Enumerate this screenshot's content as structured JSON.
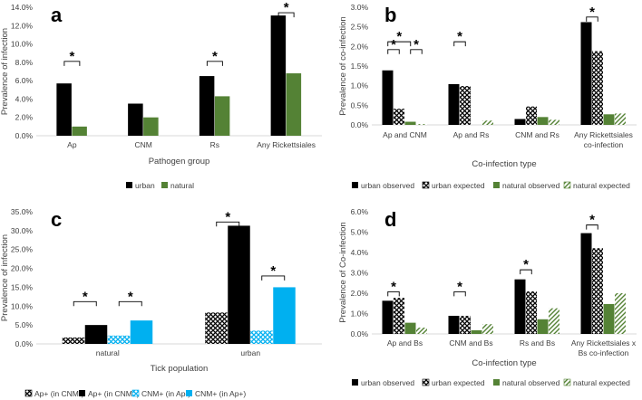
{
  "colors": {
    "urban": "#000000",
    "natural": "#548235",
    "cyan": "#00b0f0",
    "axis": "#d9d9d9",
    "text": "#404040"
  },
  "chart_data": [
    {
      "panel": "a",
      "type": "bar",
      "xlabel": "Pathogen group",
      "ylabel": "Prevalence of infection",
      "ylim": [
        0,
        0.14
      ],
      "ytick_step": 0.02,
      "ytick_decimals": 1,
      "categories": [
        "Ap",
        "CNM",
        "Rs",
        "Any Rickettsiales"
      ],
      "series": [
        {
          "name": "urban",
          "style": "solid-black",
          "values": [
            0.057,
            0.035,
            0.065,
            0.131
          ]
        },
        {
          "name": "natural",
          "style": "solid-green",
          "values": [
            0.01,
            0.02,
            0.043,
            0.068
          ]
        }
      ],
      "significance": [
        {
          "category": 0,
          "from": 0,
          "to": 1,
          "bracket": 0.081
        },
        {
          "category": 2,
          "from": 0,
          "to": 1,
          "bracket": 0.081
        },
        {
          "category": 3,
          "from": 0,
          "to": 1,
          "bracket": 0.134
        }
      ],
      "legend": [
        "urban",
        "natural"
      ]
    },
    {
      "panel": "b",
      "type": "bar",
      "xlabel": "Co-infection type",
      "ylabel": "Prevalence of co-infection",
      "ylim": [
        0,
        0.03
      ],
      "ytick_step": 0.005,
      "ytick_decimals": 1,
      "categories": [
        "Ap and CNM",
        "Ap and Rs",
        "CNM and Rs",
        "Any Rickettsiales|co-infection"
      ],
      "series": [
        {
          "name": "urban observed",
          "style": "solid-black",
          "values": [
            0.0139,
            0.0104,
            0.0015,
            0.0262
          ]
        },
        {
          "name": "urban expected",
          "style": "hatch-black",
          "values": [
            0.0041,
            0.0099,
            0.0047,
            0.0188
          ]
        },
        {
          "name": "natural observed",
          "style": "solid-green",
          "values": [
            0.0008,
            0.0,
            0.002,
            0.0027
          ]
        },
        {
          "name": "natural expected",
          "style": "hatch-green",
          "values": [
            0.0002,
            0.0011,
            0.0013,
            0.0029
          ]
        }
      ],
      "significance": [
        {
          "category": 0,
          "from": 0,
          "to": 1,
          "bracket": 0.0192
        },
        {
          "category": 0,
          "from": 0,
          "to": 2,
          "bracket": 0.0212
        },
        {
          "category": 0,
          "from": 2,
          "to": 3,
          "bracket": 0.0192
        },
        {
          "category": 1,
          "from": 0,
          "to": 1,
          "bracket": 0.0212
        },
        {
          "category": 3,
          "from": 0,
          "to": 1,
          "bracket": 0.0275
        }
      ],
      "legend": [
        "urban observed",
        "urban expected",
        "natural observed",
        "natural expected"
      ]
    },
    {
      "panel": "c",
      "type": "bar",
      "xlabel": "Tick population",
      "ylabel": "Prevalence of infection",
      "ylim": [
        0,
        0.35
      ],
      "ytick_step": 0.05,
      "ytick_decimals": 1,
      "categories": [
        "natural",
        "urban"
      ],
      "series": [
        {
          "name": "Ap+ (in CNM-)",
          "style": "hatch-black",
          "values": [
            0.017,
            0.083
          ]
        },
        {
          "name": "Ap+ (in CNM+)",
          "style": "solid-black",
          "values": [
            0.05,
            0.313
          ]
        },
        {
          "name": "CNM+ (in Ap-)",
          "style": "hatch-cyan",
          "values": [
            0.022,
            0.035
          ]
        },
        {
          "name": "CNM+ (in Ap+)",
          "style": "solid-cyan",
          "values": [
            0.062,
            0.15
          ]
        }
      ],
      "significance": [
        {
          "category": 0,
          "from": 0,
          "to": 1,
          "bracket": 0.112
        },
        {
          "category": 0,
          "from": 2,
          "to": 3,
          "bracket": 0.112
        },
        {
          "category": 1,
          "from": 0,
          "to": 1,
          "bracket": 0.323
        },
        {
          "category": 1,
          "from": 2,
          "to": 3,
          "bracket": 0.18
        }
      ],
      "legend": [
        "Ap+ (in CNM-)",
        "Ap+ (in CNM+)",
        "CNM+ (in Ap-)",
        "CNM+ (in Ap+)"
      ]
    },
    {
      "panel": "d",
      "type": "bar",
      "xlabel": "Co-infection type",
      "ylabel": "Prevalence of Co-infection",
      "ylim": [
        0,
        0.06
      ],
      "ytick_step": 0.01,
      "ytick_decimals": 1,
      "categories": [
        "Ap and Bs",
        "CNM and Bs",
        "Rs and Bs",
        "Any Rickettsiales x|Bs co-infection"
      ],
      "series": [
        {
          "name": "urban observed",
          "style": "solid-black",
          "values": [
            0.0163,
            0.0089,
            0.0268,
            0.0495
          ]
        },
        {
          "name": "urban expected",
          "style": "hatch-black",
          "values": [
            0.0177,
            0.0089,
            0.0209,
            0.0421
          ]
        },
        {
          "name": "natural observed",
          "style": "solid-green",
          "values": [
            0.0055,
            0.0018,
            0.0072,
            0.0147
          ]
        },
        {
          "name": "natural expected",
          "style": "hatch-green",
          "values": [
            0.0031,
            0.0048,
            0.0126,
            0.02
          ]
        }
      ],
      "significance": [
        {
          "category": 0,
          "from": 0,
          "to": 1,
          "bracket": 0.0207
        },
        {
          "category": 1,
          "from": 0,
          "to": 1,
          "bracket": 0.0207
        },
        {
          "category": 2,
          "from": 0,
          "to": 1,
          "bracket": 0.0315
        },
        {
          "category": 3,
          "from": 0,
          "to": 1,
          "bracket": 0.0535
        }
      ],
      "legend": [
        "urban observed",
        "urban expected",
        "natural observed",
        "natural expected"
      ]
    }
  ]
}
